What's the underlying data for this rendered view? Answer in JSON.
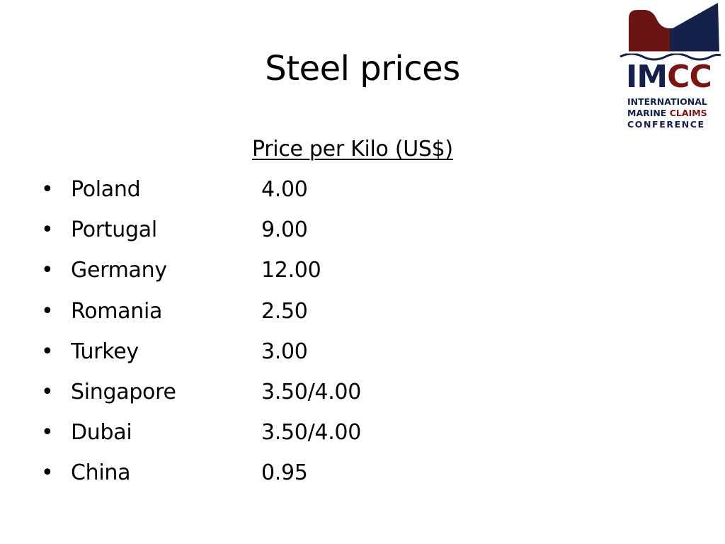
{
  "slide": {
    "title": "Steel prices",
    "column_header": "Price per Kilo (US$)",
    "bullet_char": "•",
    "rows": [
      {
        "country": "Poland",
        "price": "4.00"
      },
      {
        "country": "Portugal",
        "price": "9.00"
      },
      {
        "country": "Germany",
        "price": "12.00"
      },
      {
        "country": "Romania",
        "price": "2.50"
      },
      {
        "country": "Turkey",
        "price": "3.00"
      },
      {
        "country": "Singapore",
        "price": "3.50/4.00"
      },
      {
        "country": "Dubai",
        "price": "3.50/4.00"
      },
      {
        "country": "China",
        "price": "0.95"
      }
    ]
  },
  "logo": {
    "abbr_part1": "IM",
    "abbr_part2": "CC",
    "line1": "INTERNATIONAL",
    "line2_part1": "MARINE ",
    "line2_part2": "CLAIMS",
    "line3": "CONFERENCE",
    "colors": {
      "navy": "#15214a",
      "maroon": "#7a1515"
    }
  }
}
